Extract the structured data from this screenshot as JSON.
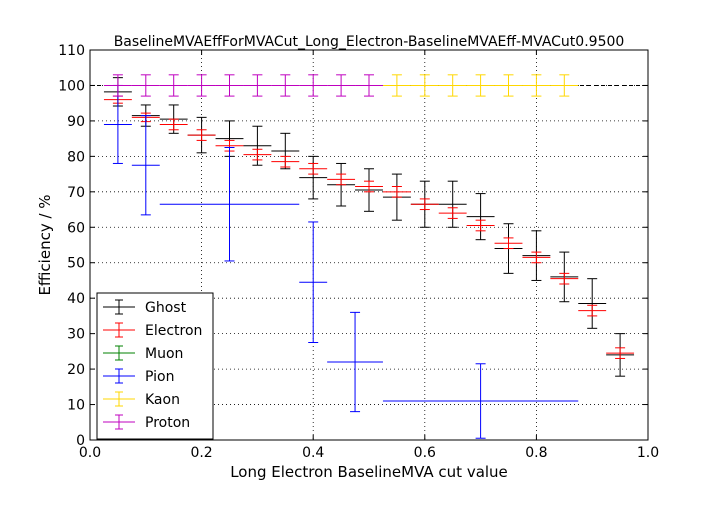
{
  "chart_data": {
    "type": "scatter",
    "title": "BaselineMVAEffForMVACut_Long_Electron-BaselineMVAEff-MVACut0.9500",
    "xlabel": "Long Electron BaselineMVA cut value",
    "ylabel": "Efficiency / %",
    "xlim": [
      0.0,
      1.0
    ],
    "ylim": [
      0,
      110
    ],
    "xticks": [
      "0.0",
      "0.2",
      "0.4",
      "0.6",
      "0.8",
      "1.0"
    ],
    "yticks": [
      "0",
      "10",
      "20",
      "30",
      "40",
      "50",
      "60",
      "70",
      "80",
      "90",
      "100",
      "110"
    ],
    "grid": true,
    "legend_position": "lower-left",
    "series": [
      {
        "name": "Ghost",
        "color": "#000000",
        "points": [
          {
            "x": 0.05,
            "xerr": 0.025,
            "y": 98.2,
            "yerr": 4.0
          },
          {
            "x": 0.1,
            "xerr": 0.025,
            "y": 91.5,
            "yerr": 3.0
          },
          {
            "x": 0.15,
            "xerr": 0.025,
            "y": 90.5,
            "yerr": 4.0
          },
          {
            "x": 0.2,
            "xerr": 0.025,
            "y": 86.0,
            "yerr": 5.0
          },
          {
            "x": 0.25,
            "xerr": 0.025,
            "y": 85.0,
            "yerr": 5.0
          },
          {
            "x": 0.3,
            "xerr": 0.025,
            "y": 83.0,
            "yerr": 5.5
          },
          {
            "x": 0.35,
            "xerr": 0.025,
            "y": 81.5,
            "yerr": 5.0
          },
          {
            "x": 0.4,
            "xerr": 0.025,
            "y": 74.0,
            "yerr": 6.0
          },
          {
            "x": 0.45,
            "xerr": 0.025,
            "y": 72.0,
            "yerr": 6.0
          },
          {
            "x": 0.5,
            "xerr": 0.025,
            "y": 70.5,
            "yerr": 6.0
          },
          {
            "x": 0.55,
            "xerr": 0.025,
            "y": 68.5,
            "yerr": 6.5
          },
          {
            "x": 0.6,
            "xerr": 0.025,
            "y": 66.5,
            "yerr": 6.5
          },
          {
            "x": 0.65,
            "xerr": 0.025,
            "y": 66.5,
            "yerr": 6.5
          },
          {
            "x": 0.7,
            "xerr": 0.025,
            "y": 63.0,
            "yerr": 6.5
          },
          {
            "x": 0.75,
            "xerr": 0.025,
            "y": 54.0,
            "yerr": 7.0
          },
          {
            "x": 0.8,
            "xerr": 0.025,
            "y": 52.0,
            "yerr": 7.0
          },
          {
            "x": 0.85,
            "xerr": 0.025,
            "y": 46.0,
            "yerr": 7.0
          },
          {
            "x": 0.9,
            "xerr": 0.025,
            "y": 38.5,
            "yerr": 7.0
          },
          {
            "x": 0.95,
            "xerr": 0.025,
            "y": 24.0,
            "yerr": 6.0
          }
        ]
      },
      {
        "name": "Electron",
        "color": "#ff0000",
        "points": [
          {
            "x": 0.05,
            "xerr": 0.025,
            "y": 96.0,
            "yerr": 1.0
          },
          {
            "x": 0.1,
            "xerr": 0.025,
            "y": 91.0,
            "yerr": 1.2
          },
          {
            "x": 0.15,
            "xerr": 0.025,
            "y": 89.0,
            "yerr": 1.5
          },
          {
            "x": 0.2,
            "xerr": 0.025,
            "y": 86.0,
            "yerr": 1.5
          },
          {
            "x": 0.25,
            "xerr": 0.025,
            "y": 83.0,
            "yerr": 1.5
          },
          {
            "x": 0.3,
            "xerr": 0.025,
            "y": 80.5,
            "yerr": 1.5
          },
          {
            "x": 0.35,
            "xerr": 0.025,
            "y": 78.5,
            "yerr": 1.5
          },
          {
            "x": 0.4,
            "xerr": 0.025,
            "y": 76.5,
            "yerr": 1.5
          },
          {
            "x": 0.45,
            "xerr": 0.025,
            "y": 73.5,
            "yerr": 1.5
          },
          {
            "x": 0.5,
            "xerr": 0.025,
            "y": 71.5,
            "yerr": 1.5
          },
          {
            "x": 0.55,
            "xerr": 0.025,
            "y": 70.0,
            "yerr": 1.5
          },
          {
            "x": 0.6,
            "xerr": 0.025,
            "y": 66.5,
            "yerr": 1.5
          },
          {
            "x": 0.65,
            "xerr": 0.025,
            "y": 64.0,
            "yerr": 1.5
          },
          {
            "x": 0.7,
            "xerr": 0.025,
            "y": 60.5,
            "yerr": 1.5
          },
          {
            "x": 0.75,
            "xerr": 0.025,
            "y": 55.5,
            "yerr": 1.5
          },
          {
            "x": 0.8,
            "xerr": 0.025,
            "y": 51.5,
            "yerr": 1.5
          },
          {
            "x": 0.85,
            "xerr": 0.025,
            "y": 45.5,
            "yerr": 1.5
          },
          {
            "x": 0.9,
            "xerr": 0.025,
            "y": 36.5,
            "yerr": 1.5
          },
          {
            "x": 0.95,
            "xerr": 0.025,
            "y": 24.5,
            "yerr": 1.5
          }
        ]
      },
      {
        "name": "Muon",
        "color": "#008000",
        "points": []
      },
      {
        "name": "Pion",
        "color": "#0000ff",
        "points": [
          {
            "x": 0.05,
            "xerr": 0.025,
            "y": 89.0,
            "yerr": 11.0
          },
          {
            "x": 0.1,
            "xerr": 0.025,
            "y": 77.5,
            "yerr": 14.0
          },
          {
            "x": 0.25,
            "xerr": 0.125,
            "y": 66.5,
            "yerr": 16.0
          },
          {
            "x": 0.4,
            "xerr": 0.025,
            "y": 44.5,
            "yerr": 17.0
          },
          {
            "x": 0.475,
            "xerr": 0.05,
            "y": 22.0,
            "yerr": 14.0
          },
          {
            "x": 0.7,
            "xerr": 0.175,
            "y": 11.0,
            "yerr": 10.5
          }
        ]
      },
      {
        "name": "Kaon",
        "color": "#ffd700",
        "points": [
          {
            "x": 0.55,
            "xerr": 0.025,
            "y": 100.0,
            "yerr": 3.0
          },
          {
            "x": 0.6,
            "xerr": 0.025,
            "y": 100.0,
            "yerr": 3.0
          },
          {
            "x": 0.65,
            "xerr": 0.025,
            "y": 100.0,
            "yerr": 3.0
          },
          {
            "x": 0.7,
            "xerr": 0.025,
            "y": 100.0,
            "yerr": 3.0
          },
          {
            "x": 0.75,
            "xerr": 0.025,
            "y": 100.0,
            "yerr": 3.0
          },
          {
            "x": 0.8,
            "xerr": 0.025,
            "y": 100.0,
            "yerr": 3.0
          },
          {
            "x": 0.85,
            "xerr": 0.025,
            "y": 100.0,
            "yerr": 3.0
          }
        ]
      },
      {
        "name": "Proton",
        "color": "#bf00bf",
        "points": [
          {
            "x": 0.05,
            "xerr": 0.025,
            "y": 100.0,
            "yerr": 3.0
          },
          {
            "x": 0.1,
            "xerr": 0.025,
            "y": 100.0,
            "yerr": 3.0
          },
          {
            "x": 0.15,
            "xerr": 0.025,
            "y": 100.0,
            "yerr": 3.0
          },
          {
            "x": 0.2,
            "xerr": 0.025,
            "y": 100.0,
            "yerr": 3.0
          },
          {
            "x": 0.25,
            "xerr": 0.025,
            "y": 100.0,
            "yerr": 3.0
          },
          {
            "x": 0.3,
            "xerr": 0.025,
            "y": 100.0,
            "yerr": 3.0
          },
          {
            "x": 0.35,
            "xerr": 0.025,
            "y": 100.0,
            "yerr": 3.0
          },
          {
            "x": 0.4,
            "xerr": 0.025,
            "y": 100.0,
            "yerr": 3.0
          },
          {
            "x": 0.45,
            "xerr": 0.025,
            "y": 100.0,
            "yerr": 3.0
          },
          {
            "x": 0.5,
            "xerr": 0.025,
            "y": 100.0,
            "yerr": 3.0
          }
        ]
      }
    ],
    "reference_line": {
      "y": 100,
      "style": "dashed",
      "color": "#000000"
    }
  }
}
